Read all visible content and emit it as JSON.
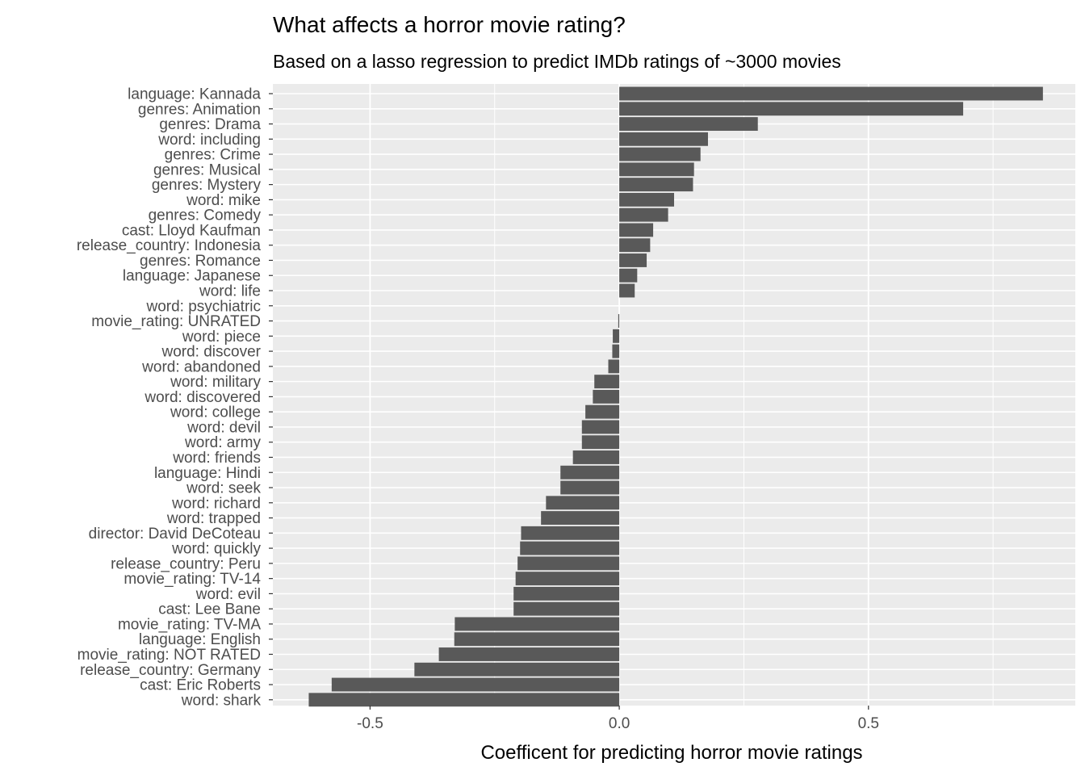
{
  "chart_data": {
    "type": "bar",
    "orientation": "horizontal",
    "title": "What affects a horror movie rating?",
    "subtitle": "Based on a lasso regression to predict IMDb ratings of ~3000 movies",
    "xlabel": "Coefficent for predicting horror movie ratings",
    "ylabel": "",
    "xlim": [
      -0.695,
      0.915
    ],
    "xticks": [
      -0.5,
      0.0,
      0.5
    ],
    "xtick_labels": [
      "-0.5",
      "0.0",
      "0.5"
    ],
    "grid": true,
    "bar_color": "#595959",
    "panel_background": "#ebebeb",
    "categories": [
      "language: Kannada",
      "genres: Animation",
      "genres: Drama",
      "word: including",
      "genres: Crime",
      "genres: Musical",
      "genres: Mystery",
      "word: mike",
      "genres: Comedy",
      "cast: Lloyd Kaufman",
      "release_country: Indonesia",
      "genres: Romance",
      "language: Japanese",
      "word: life",
      "word: psychiatric",
      "movie_rating: UNRATED",
      "word: piece",
      "word: discover",
      "word: abandoned",
      "word: military",
      "word: discovered",
      "word: college",
      "word: devil",
      "word: army",
      "word: friends",
      "language: Hindi",
      "word: seek",
      "word: richard",
      "word: trapped",
      "director: David DeCoteau",
      "word: quickly",
      "release_country: Peru",
      "movie_rating: TV-14",
      "word: evil",
      "cast: Lee Bane",
      "movie_rating: TV-MA",
      "language: English",
      "movie_rating: NOT RATED",
      "release_country: Germany",
      "cast: Eric Roberts",
      "word: shark"
    ],
    "values": [
      0.85,
      0.69,
      0.278,
      0.178,
      0.163,
      0.15,
      0.148,
      0.11,
      0.098,
      0.068,
      0.062,
      0.055,
      0.036,
      0.031,
      0.0,
      -0.002,
      -0.013,
      -0.014,
      -0.022,
      -0.05,
      -0.053,
      -0.068,
      -0.075,
      -0.075,
      -0.093,
      -0.118,
      -0.118,
      -0.147,
      -0.157,
      -0.197,
      -0.199,
      -0.204,
      -0.208,
      -0.212,
      -0.212,
      -0.33,
      -0.331,
      -0.362,
      -0.411,
      -0.577,
      -0.623
    ]
  }
}
